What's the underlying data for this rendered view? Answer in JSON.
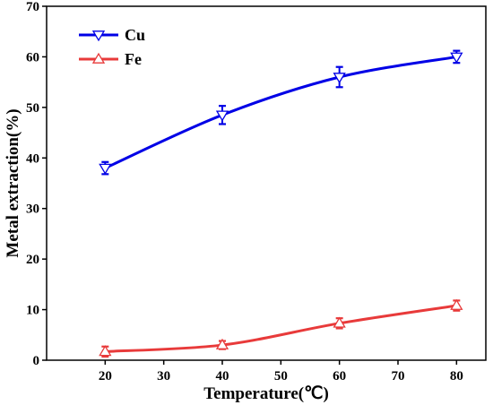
{
  "chart_data": {
    "type": "line",
    "xlabel": "Temperature(℃)",
    "ylabel": "Metal extraction(%)",
    "x": [
      20,
      40,
      60,
      80
    ],
    "xlim": [
      10,
      85
    ],
    "ylim": [
      0,
      70
    ],
    "xticks": [
      20,
      30,
      40,
      50,
      60,
      70,
      80
    ],
    "yticks": [
      0,
      10,
      20,
      30,
      40,
      50,
      60,
      70
    ],
    "grid": false,
    "legend_position": "top-left",
    "series": [
      {
        "name": "Cu",
        "color": "#0000e6",
        "marker": "triangle-down",
        "values": [
          38.0,
          48.5,
          56.0,
          60.0
        ],
        "errors": [
          1.2,
          1.8,
          2.0,
          1.2
        ]
      },
      {
        "name": "Fe",
        "color": "#e83a3a",
        "marker": "triangle-up",
        "values": [
          1.7,
          3.0,
          7.3,
          10.8
        ],
        "errors": [
          1.0,
          0.8,
          1.0,
          1.0
        ]
      }
    ]
  }
}
